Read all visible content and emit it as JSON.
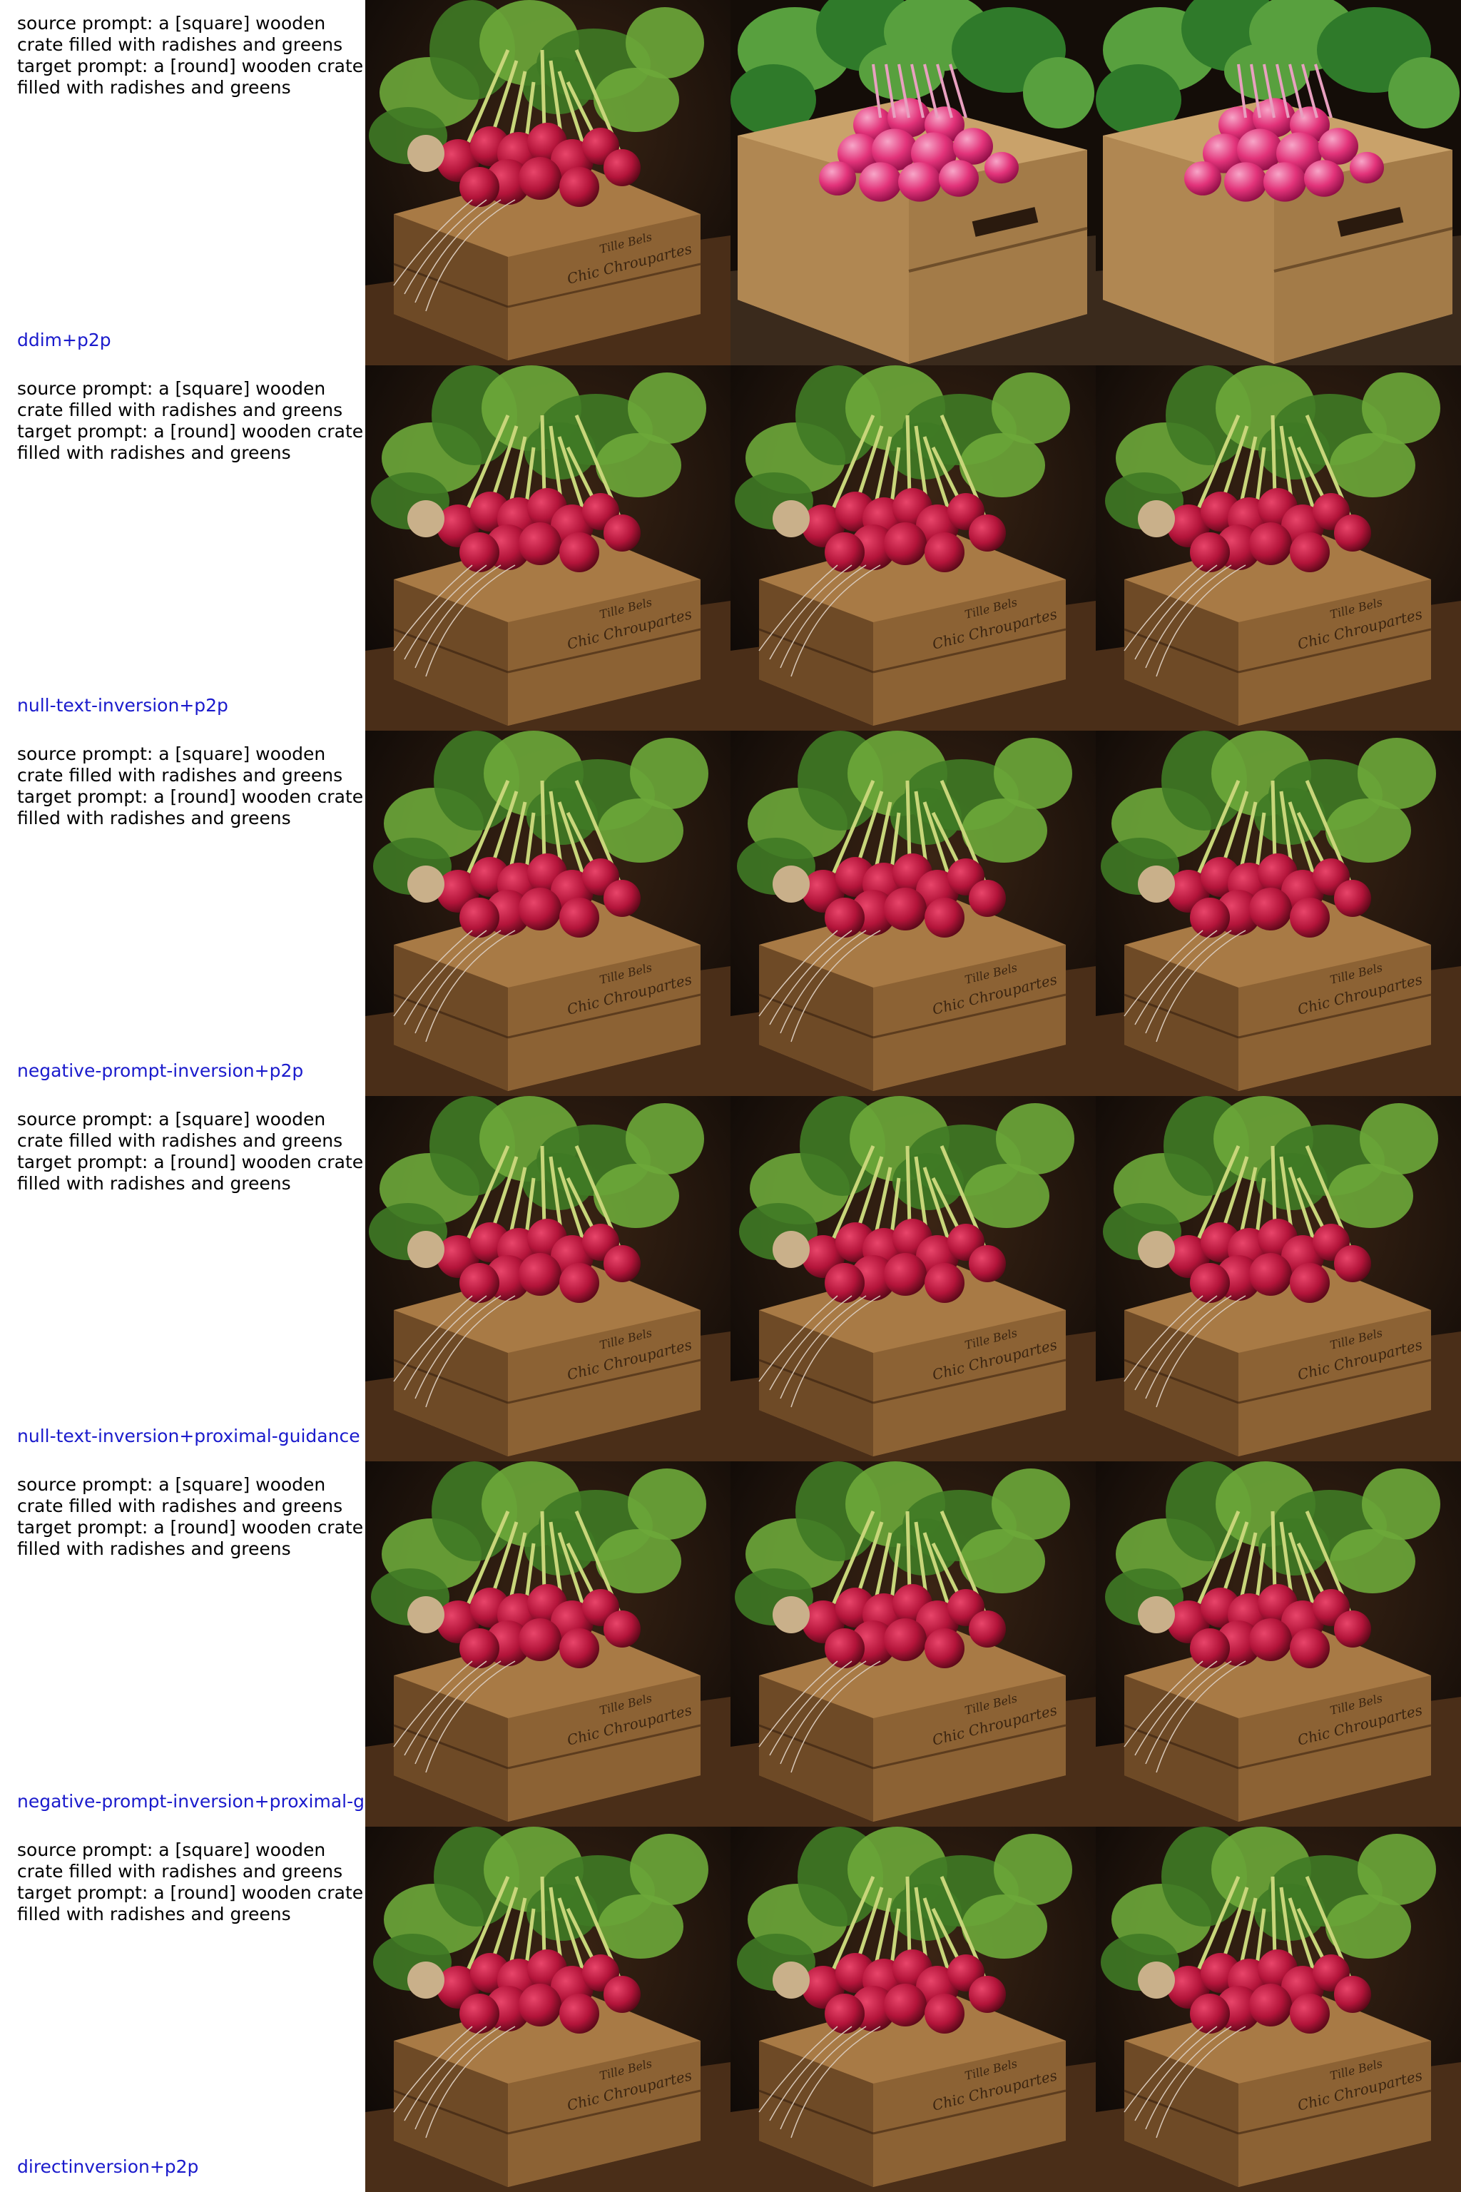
{
  "rows": [
    {
      "prompt": "source prompt: a [square] wooden\ncrate filled with radishes and greens\ntarget prompt: a [round] wooden crate\nfilled with radishes and greens",
      "method": "ddim+p2p"
    },
    {
      "prompt": "source prompt: a [square] wooden\ncrate filled with radishes and greens\ntarget prompt: a [round] wooden crate\nfilled with radishes and greens",
      "method": "null-text-inversion+p2p"
    },
    {
      "prompt": "source prompt: a [square] wooden\ncrate filled with radishes and greens\ntarget prompt: a [round] wooden crate\nfilled with radishes and greens",
      "method": "negative-prompt-inversion+p2p"
    },
    {
      "prompt": "source prompt: a [square] wooden\ncrate filled with radishes and greens\ntarget prompt: a [round] wooden crate\nfilled with radishes and greens",
      "method": "null-text-inversion+proximal-guidance"
    },
    {
      "prompt": "source prompt: a [square] wooden\ncrate filled with radishes and greens\ntarget prompt: a [round] wooden crate\nfilled with radishes and greens",
      "method": "negative-prompt-inversion+proximal-g"
    },
    {
      "prompt": "source prompt: a [square] wooden\ncrate filled with radishes and greens\ntarget prompt: a [round] wooden crate\nfilled with radishes and greens",
      "method": "directinversion+p2p"
    }
  ],
  "crate_stamp": [
    "Tille Bels",
    "Chic Chroupartes"
  ],
  "colors": {
    "method_label": "#1a1acc",
    "prompt_text": "#000000",
    "radish_red": "#b3143a",
    "radish_pink": "#e2337a",
    "greens": "#3f7a25",
    "crate_wood": "#a87a45",
    "background": "#1a120c"
  }
}
